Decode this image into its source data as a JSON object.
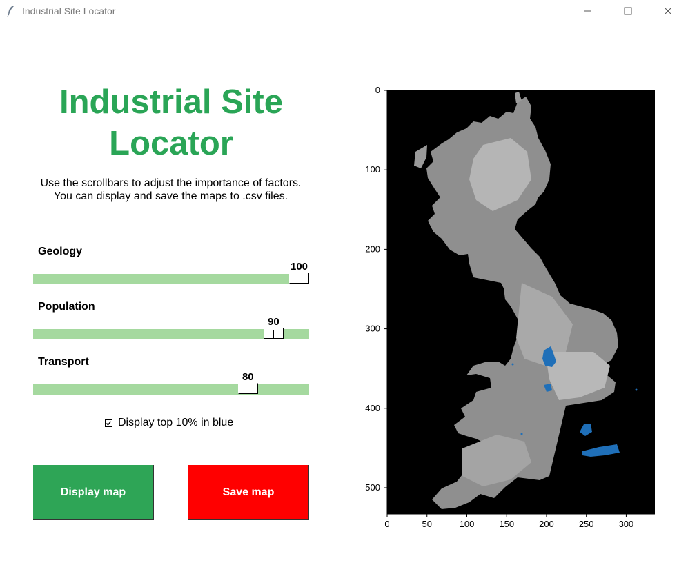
{
  "window": {
    "title": "Industrial Site Locator"
  },
  "heading": {
    "line1": "Industrial Site",
    "line2": "Locator"
  },
  "description": {
    "line1": "Use the scrollbars to adjust the importance of factors.",
    "line2": "You can display and save the maps to .csv files."
  },
  "sliders": [
    {
      "label": "Geology",
      "value": "100",
      "level": 1.0
    },
    {
      "label": "Population",
      "value": "90",
      "level": 0.9
    },
    {
      "label": "Transport",
      "value": "80",
      "level": 0.8
    }
  ],
  "checkbox": {
    "label": "Display top 10% in blue",
    "checked": true
  },
  "buttons": {
    "display_label": "Display map",
    "save_label": "Save map"
  },
  "map": {
    "x_ticks": [
      "0",
      "50",
      "100",
      "150",
      "200",
      "250",
      "300"
    ],
    "y_ticks": [
      "0",
      "100",
      "200",
      "300",
      "400",
      "500"
    ],
    "x_range": [
      0,
      336
    ],
    "y_range": [
      533,
      0
    ],
    "background_color": "#000000",
    "highlight_color": "#1f6fb8"
  },
  "colors": {
    "accent_green": "#2aa556",
    "save_red": "#ff0000",
    "trough": "#a5d99f"
  }
}
